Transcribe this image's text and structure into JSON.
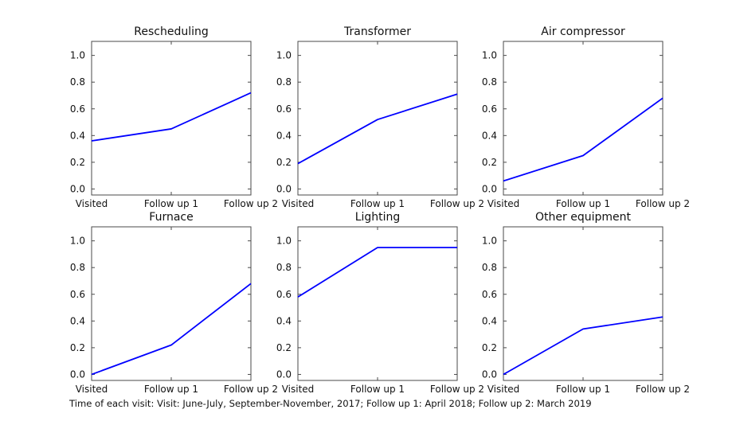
{
  "figure": {
    "background": "#ffffff",
    "line_color": "#0000ff",
    "axis_color": "#4a4a4a",
    "text_color": "#111111",
    "caption": "Time of each visit: Visit: June-July, September-November, 2017; Follow up 1: April 2018; Follow up 2: March 2019"
  },
  "chart_data": [
    {
      "type": "line",
      "title": "Rescheduling",
      "categories": [
        "Visited",
        "Follow up 1",
        "Follow up 2"
      ],
      "values": [
        0.36,
        0.45,
        0.72
      ],
      "yticks": [
        0.0,
        0.2,
        0.4,
        0.6,
        0.8,
        1.0
      ],
      "ylim": [
        -0.045,
        1.105
      ],
      "grid": false,
      "legend": "none"
    },
    {
      "type": "line",
      "title": "Transformer",
      "categories": [
        "Visited",
        "Follow up 1",
        "Follow up 2"
      ],
      "values": [
        0.19,
        0.52,
        0.71
      ],
      "yticks": [
        0.0,
        0.2,
        0.4,
        0.6,
        0.8,
        1.0
      ],
      "ylim": [
        -0.045,
        1.105
      ],
      "grid": false,
      "legend": "none"
    },
    {
      "type": "line",
      "title": "Air compressor",
      "categories": [
        "Visited",
        "Follow up 1",
        "Follow up 2"
      ],
      "values": [
        0.06,
        0.25,
        0.68
      ],
      "yticks": [
        0.0,
        0.2,
        0.4,
        0.6,
        0.8,
        1.0
      ],
      "ylim": [
        -0.045,
        1.105
      ],
      "grid": false,
      "legend": "none"
    },
    {
      "type": "line",
      "title": "Furnace",
      "categories": [
        "Visited",
        "Follow up 1",
        "Follow up 2"
      ],
      "values": [
        0.0,
        0.22,
        0.68
      ],
      "yticks": [
        0.0,
        0.2,
        0.4,
        0.6,
        0.8,
        1.0
      ],
      "ylim": [
        -0.045,
        1.105
      ],
      "grid": false,
      "legend": "none"
    },
    {
      "type": "line",
      "title": "Lighting",
      "categories": [
        "Visited",
        "Follow up 1",
        "Follow up 2"
      ],
      "values": [
        0.58,
        0.95,
        0.95
      ],
      "yticks": [
        0.0,
        0.2,
        0.4,
        0.6,
        0.8,
        1.0
      ],
      "ylim": [
        -0.045,
        1.105
      ],
      "grid": false,
      "legend": "none"
    },
    {
      "type": "line",
      "title": "Other equipment",
      "categories": [
        "Visited",
        "Follow up 1",
        "Follow up 2"
      ],
      "values": [
        0.0,
        0.34,
        0.43
      ],
      "yticks": [
        0.0,
        0.2,
        0.4,
        0.6,
        0.8,
        1.0
      ],
      "ylim": [
        -0.045,
        1.105
      ],
      "grid": false,
      "legend": "none"
    }
  ]
}
